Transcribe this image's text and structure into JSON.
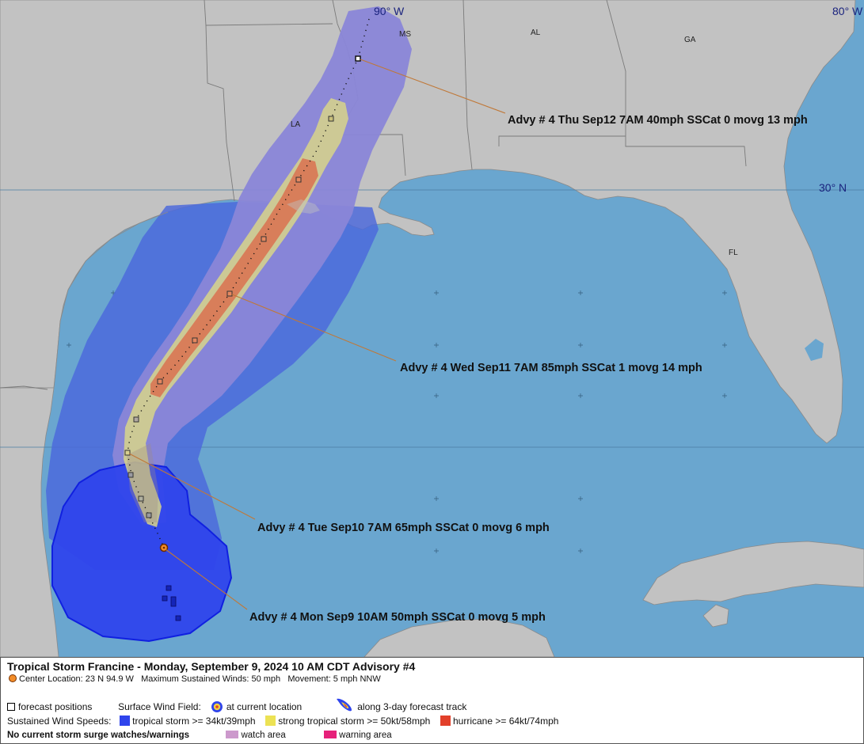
{
  "map": {
    "grid_labels": {
      "lon_90": "90° W",
      "lon_80": "80° W",
      "lat_30": "30° N"
    },
    "state_labels": {
      "ms": "MS",
      "al": "AL",
      "ga": "GA",
      "la": "LA",
      "fl": "FL"
    },
    "advisory_labels": [
      "Advy # 4 Thu Sep12 7AM  40mph SSCat 0 movg 13 mph",
      "Advy # 4 Wed Sep11 7AM  85mph SSCat 1 movg 14 mph",
      "Advy # 4 Tue Sep10 7AM  65mph SSCat 0 movg 6 mph",
      "Advy # 4 Mon Sep9 10AM  50mph SSCat 0 movg 5 mph"
    ],
    "colors": {
      "land": "#c2c2c2",
      "water": "#6aa6cf",
      "cone_outer": "#8a86d8",
      "tropical_storm_wind": "#2f44ec",
      "strong_tropical_storm_wind": "#ece254",
      "hurricane_wind": "#e2402a",
      "watch": "#cc99cc",
      "warning": "#e6217a",
      "center": "#f28c28"
    }
  },
  "legend": {
    "title": "Tropical Storm Francine  -  Monday, September 9, 2024  10 AM CDT   Advisory #4",
    "center_location": "Center Location: 23 N  94.9 W",
    "max_winds": "Maximum Sustained Winds: 50 mph",
    "movement": "Movement: 5 mph NNW",
    "forecast_positions": "forecast positions",
    "surface_wind_field": "Surface Wind Field:",
    "at_current_location": "at current location",
    "along_track": "along 3-day forecast track",
    "sustained_wind_speeds": "Sustained Wind Speeds:",
    "tropical_storm": "tropical storm >= 34kt/39mph",
    "strong_tropical_storm": "strong tropical storm >= 50kt/58mph",
    "hurricane": "hurricane >= 64kt/74mph",
    "no_surge": "No current storm surge watches/warnings",
    "watch_area": "watch area",
    "warning_area": "warning area"
  }
}
